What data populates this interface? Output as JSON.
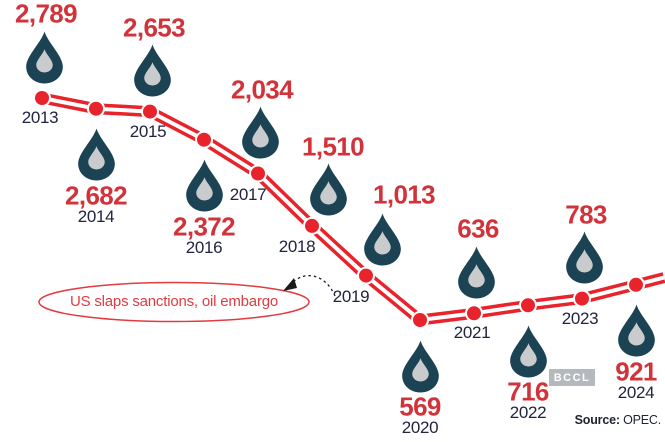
{
  "chart_data": {
    "type": "line",
    "title": "",
    "marker": "oil-drop",
    "line_style": "double-track-red-with-point-dots",
    "grid": false,
    "legend_position": "none",
    "categories": [
      "2013",
      "2014",
      "2015",
      "2016",
      "2017",
      "2018",
      "2019",
      "2020",
      "2021",
      "2022",
      "2023",
      "2024"
    ],
    "values": [
      2789,
      2682,
      2653,
      2372,
      2034,
      1510,
      1013,
      569,
      636,
      716,
      783,
      921
    ],
    "points": [
      {
        "year": "2013",
        "value": 2789,
        "label": "2,789",
        "placement": "above"
      },
      {
        "year": "2014",
        "value": 2682,
        "label": "2,682",
        "placement": "below"
      },
      {
        "year": "2015",
        "value": 2653,
        "label": "2,653",
        "placement": "above"
      },
      {
        "year": "2016",
        "value": 2372,
        "label": "2,372",
        "placement": "below"
      },
      {
        "year": "2017",
        "value": 2034,
        "label": "2,034",
        "placement": "above"
      },
      {
        "year": "2018",
        "value": 1510,
        "label": "1,510",
        "placement": "above_right"
      },
      {
        "year": "2019",
        "value": 1013,
        "label": "1,013",
        "placement": "above_right"
      },
      {
        "year": "2020",
        "value": 569,
        "label": "569",
        "placement": "below"
      },
      {
        "year": "2021",
        "value": 636,
        "label": "636",
        "placement": "above"
      },
      {
        "year": "2022",
        "value": 716,
        "label": "716",
        "placement": "below"
      },
      {
        "year": "2023",
        "value": 783,
        "label": "783",
        "placement": "above"
      },
      {
        "year": "2024",
        "value": 921,
        "label": "921",
        "placement": "below"
      }
    ],
    "annotation": {
      "text": "US slaps sanctions, oil embargo",
      "target_year": "2019"
    },
    "source_label": "Source:",
    "source_value": "OPEC.",
    "watermark": "BCCL",
    "colors": {
      "line": "#e8232b",
      "dot": "#e8232b",
      "value_text": "#d2333a",
      "year_text": "#202440",
      "drop": "#1b4353",
      "drop_inner": "#c9cbcd",
      "annotation": "#e23a40",
      "arrow": "#1a1a1a",
      "background": "#ffffff"
    }
  }
}
